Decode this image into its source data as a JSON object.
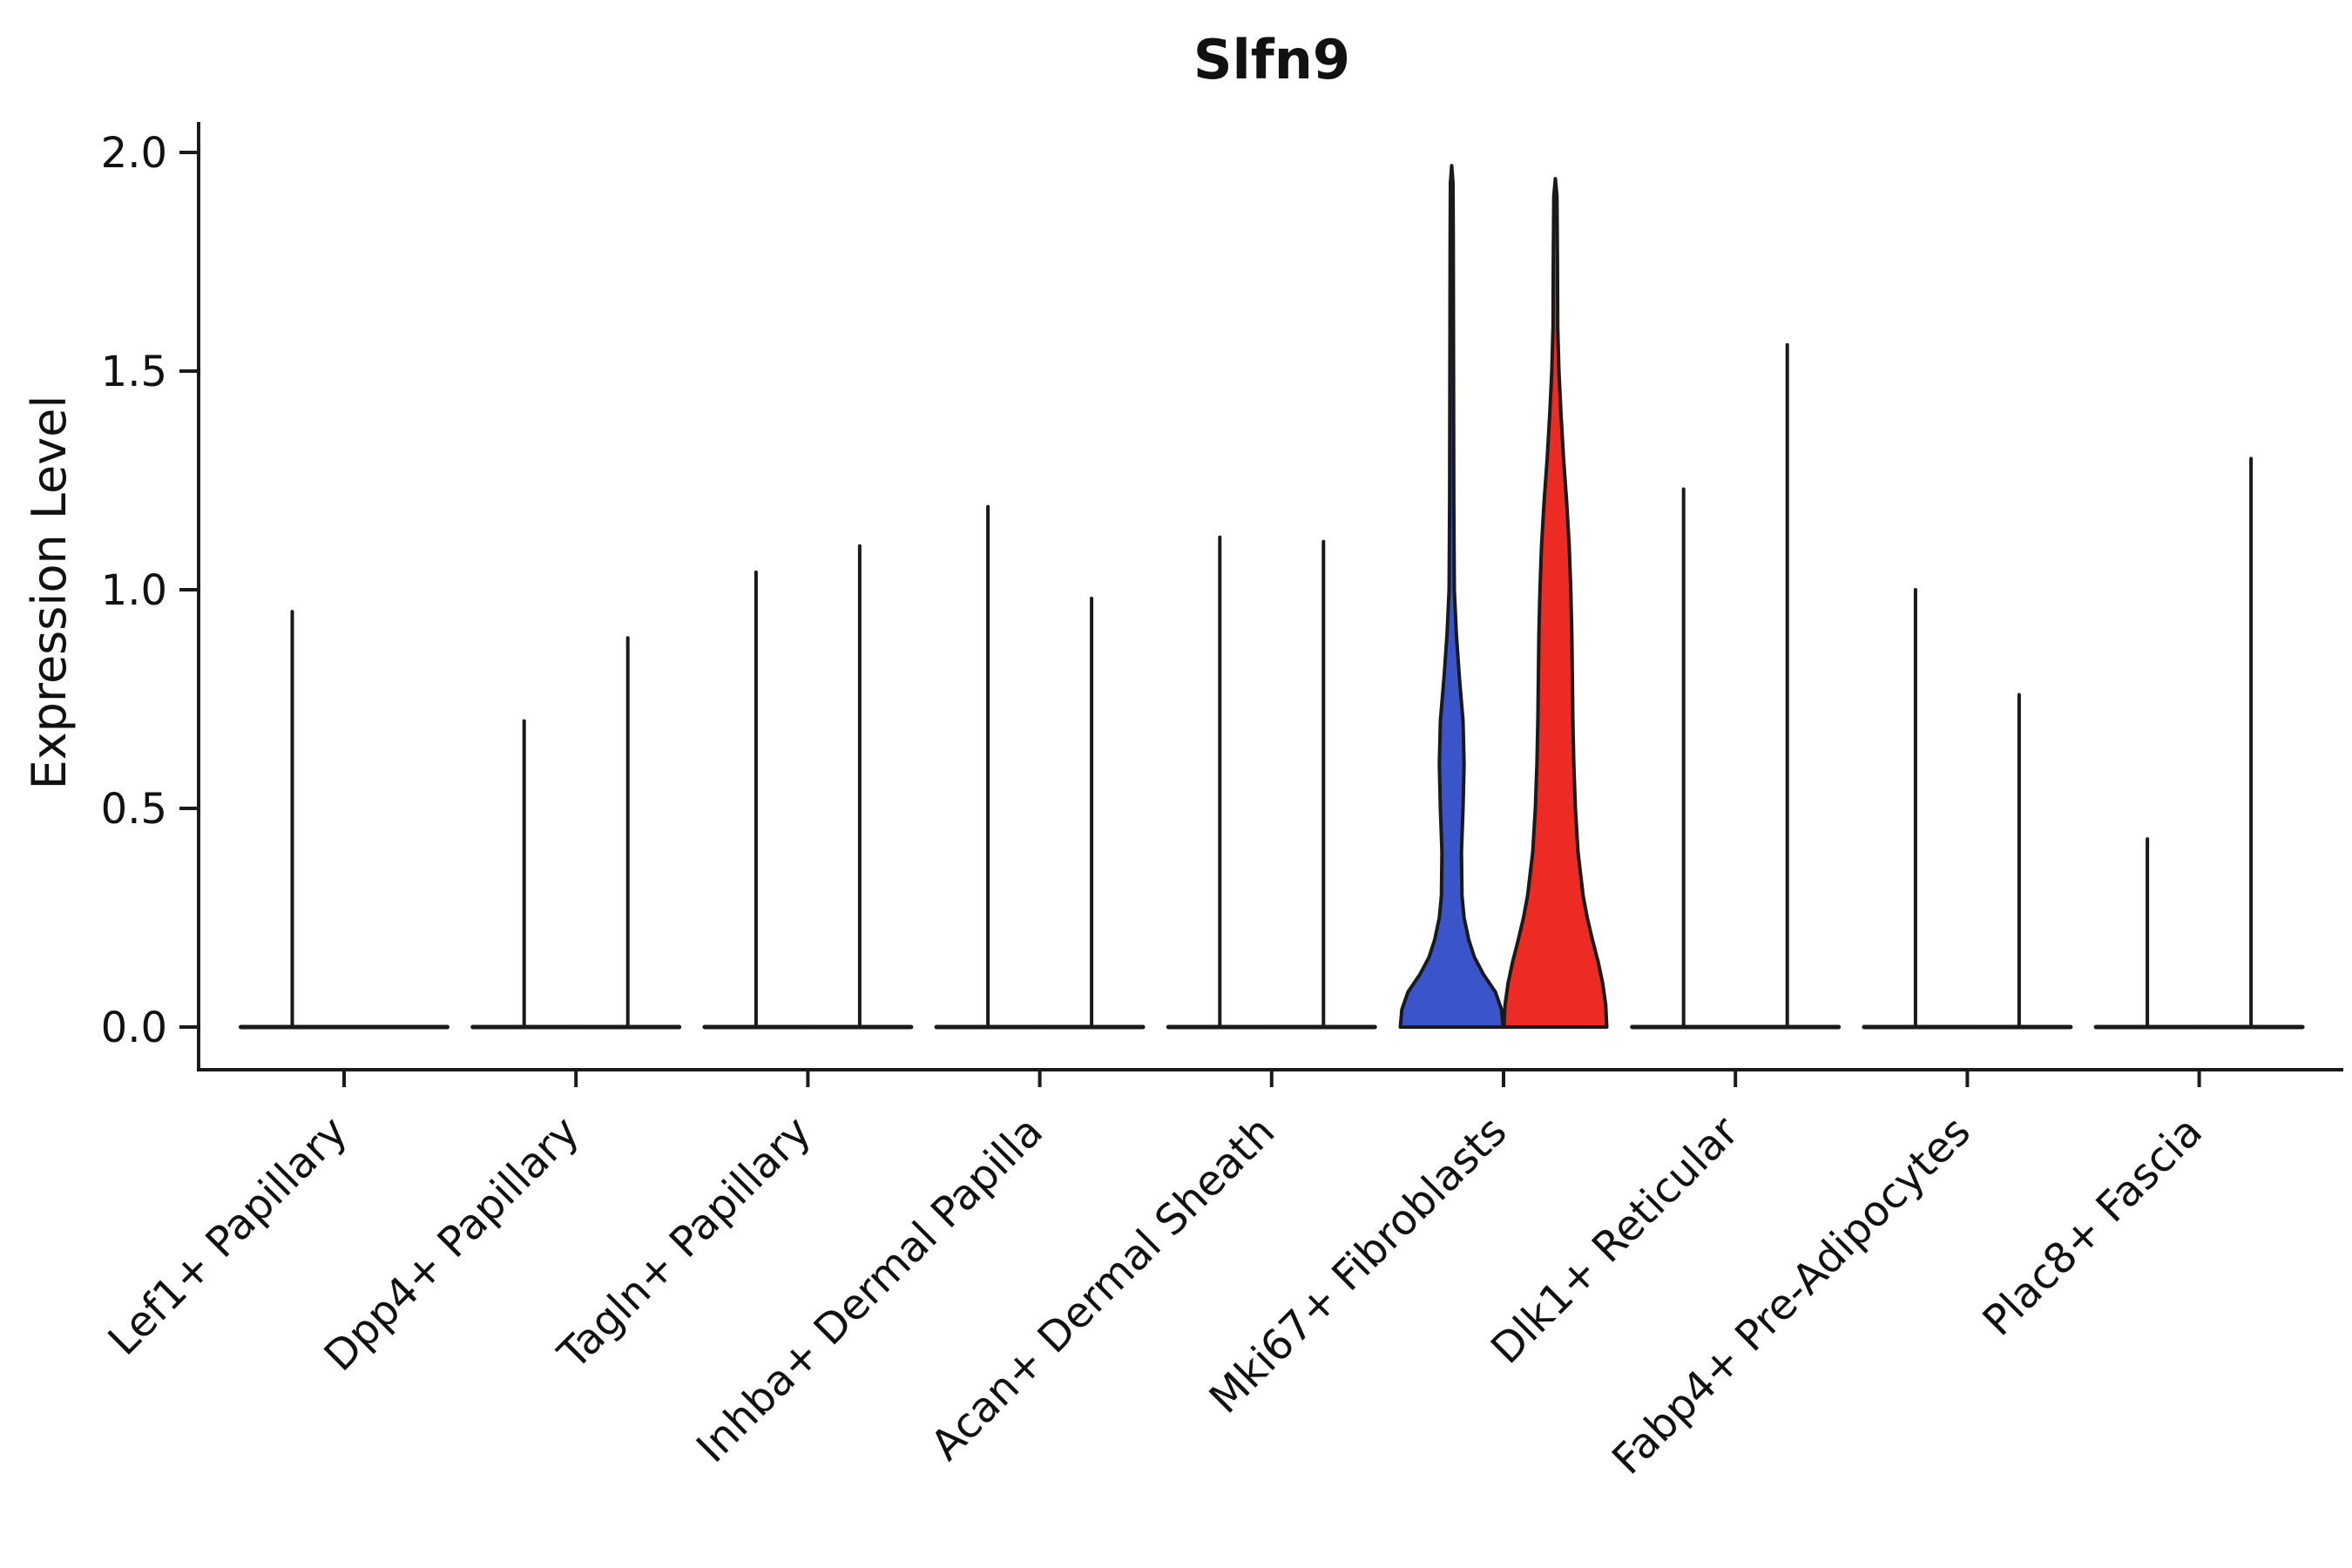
{
  "chart_data": {
    "type": "violin",
    "title": "Slfn9",
    "xlabel": "",
    "ylabel": "Expression Level",
    "ylim": [
      0.0,
      2.0
    ],
    "yticks": [
      0.0,
      0.5,
      1.0,
      1.5,
      2.0
    ],
    "ytick_labels": [
      "0.0",
      "0.5",
      "1.0",
      "1.5",
      "2.0"
    ],
    "grid": false,
    "legend": "none",
    "axis_color": "#1a1a1a",
    "outline_color": "#1a1a1a",
    "categories": [
      "Lef1+ Papillary",
      "Dpp4+ Papillary",
      "Tagln+ Papillary",
      "Inhba+ Dermal Papilla",
      "Acan+ Dermal Sheath",
      "Mki67+ Fibroblasts",
      "Dlk1+ Reticular",
      "Fabp4+ Pre-Adipocytes",
      "Plac8+ Fascia"
    ],
    "series": [
      {
        "name": "blue",
        "color": "#3A55C9",
        "max_expression": [
          0.95,
          0.7,
          1.04,
          1.19,
          1.12,
          1.97,
          1.23,
          1.0,
          0.43
        ]
      },
      {
        "name": "red",
        "color": "#EC2C24",
        "max_expression": [
          0.0,
          0.89,
          1.1,
          0.98,
          1.11,
          1.94,
          1.56,
          0.76,
          1.3
        ]
      }
    ],
    "note": "All violins except Mki67+ Fibroblasts collapse to a flat base at 0 with a thin spike up to their max expression; the Mki67+ Fibroblasts pair shows visible filled violin bodies (blue and red).",
    "highlight": {
      "category": "Mki67+ Fibroblasts",
      "blue_profile": [
        [
          0.0,
          1.0
        ],
        [
          0.04,
          0.97
        ],
        [
          0.08,
          0.85
        ],
        [
          0.12,
          0.62
        ],
        [
          0.16,
          0.44
        ],
        [
          0.2,
          0.33
        ],
        [
          0.25,
          0.24
        ],
        [
          0.3,
          0.2
        ],
        [
          0.4,
          0.19
        ],
        [
          0.5,
          0.22
        ],
        [
          0.6,
          0.24
        ],
        [
          0.7,
          0.22
        ],
        [
          0.8,
          0.15
        ],
        [
          0.9,
          0.09
        ],
        [
          1.0,
          0.05
        ],
        [
          1.2,
          0.04
        ],
        [
          1.5,
          0.035
        ],
        [
          1.8,
          0.03
        ],
        [
          1.93,
          0.025
        ],
        [
          1.97,
          0.0
        ]
      ],
      "red_profile": [
        [
          0.0,
          1.0
        ],
        [
          0.05,
          0.98
        ],
        [
          0.1,
          0.92
        ],
        [
          0.15,
          0.83
        ],
        [
          0.2,
          0.72
        ],
        [
          0.25,
          0.62
        ],
        [
          0.3,
          0.54
        ],
        [
          0.4,
          0.44
        ],
        [
          0.5,
          0.39
        ],
        [
          0.6,
          0.36
        ],
        [
          0.7,
          0.34
        ],
        [
          0.8,
          0.33
        ],
        [
          0.9,
          0.32
        ],
        [
          1.0,
          0.3
        ],
        [
          1.1,
          0.27
        ],
        [
          1.2,
          0.22
        ],
        [
          1.3,
          0.16
        ],
        [
          1.4,
          0.11
        ],
        [
          1.5,
          0.07
        ],
        [
          1.6,
          0.045
        ],
        [
          1.75,
          0.04
        ],
        [
          1.9,
          0.03
        ],
        [
          1.94,
          0.0
        ]
      ]
    }
  }
}
